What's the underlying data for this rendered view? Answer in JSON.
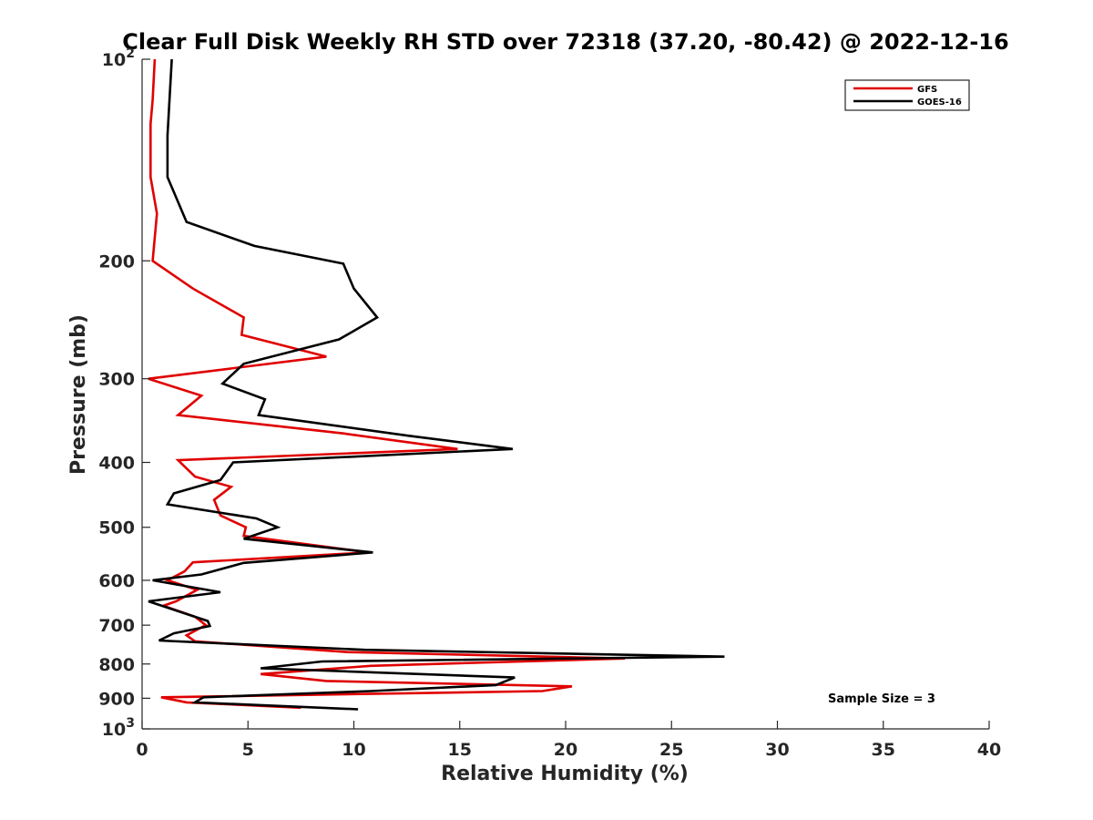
{
  "chart_data": {
    "type": "line",
    "title": "Clear Full Disk Weekly RH STD over 72318 (37.20, -80.42) @ 2022-12-16",
    "xlabel": "Relative Humidity (%)",
    "ylabel": "Pressure (mb)",
    "xlim": [
      0,
      40
    ],
    "ylim": [
      100,
      1000
    ],
    "y_scale": "log",
    "y_reversed": true,
    "x_ticks": [
      "0",
      "5",
      "10",
      "15",
      "20",
      "25",
      "30",
      "35",
      "40"
    ],
    "y_ticks": [
      {
        "value": 100,
        "label": "10",
        "sup": "2"
      },
      {
        "value": 200,
        "label": "200",
        "sup": ""
      },
      {
        "value": 300,
        "label": "300",
        "sup": ""
      },
      {
        "value": 400,
        "label": "400",
        "sup": ""
      },
      {
        "value": 500,
        "label": "500",
        "sup": ""
      },
      {
        "value": 600,
        "label": "600",
        "sup": ""
      },
      {
        "value": 700,
        "label": "700",
        "sup": ""
      },
      {
        "value": 800,
        "label": "800",
        "sup": ""
      },
      {
        "value": 900,
        "label": "900",
        "sup": ""
      },
      {
        "value": 1000,
        "label": "10",
        "sup": "3"
      }
    ],
    "legend_position": "top-right",
    "grid": false,
    "annotation": "Sample Size = 3",
    "series": [
      {
        "name": "GFS",
        "color": "#e00000",
        "points": [
          [
            0.6,
            100
          ],
          [
            0.5,
            115
          ],
          [
            0.4,
            125
          ],
          [
            0.4,
            150
          ],
          [
            0.7,
            170
          ],
          [
            0.5,
            200
          ],
          [
            2.4,
            220
          ],
          [
            4.8,
            243
          ],
          [
            4.7,
            258
          ],
          [
            8.7,
            278
          ],
          [
            0.3,
            300
          ],
          [
            2.8,
            318
          ],
          [
            1.7,
            340
          ],
          [
            9.5,
            362
          ],
          [
            14.9,
            382
          ],
          [
            1.7,
            397
          ],
          [
            2.5,
            420
          ],
          [
            4.2,
            435
          ],
          [
            3.4,
            455
          ],
          [
            3.7,
            480
          ],
          [
            4.9,
            500
          ],
          [
            4.8,
            515
          ],
          [
            10.7,
            545
          ],
          [
            2.4,
            564
          ],
          [
            2.0,
            582
          ],
          [
            1.2,
            600
          ],
          [
            2.6,
            620
          ],
          [
            1.6,
            645
          ],
          [
            1.0,
            655
          ],
          [
            2.5,
            680
          ],
          [
            3.0,
            700
          ],
          [
            2.1,
            725
          ],
          [
            2.5,
            740
          ],
          [
            9.7,
            768
          ],
          [
            22.8,
            785
          ],
          [
            10.8,
            805
          ],
          [
            5.6,
            828
          ],
          [
            8.7,
            848
          ],
          [
            20.3,
            864
          ],
          [
            18.9,
            878
          ],
          [
            0.9,
            897
          ],
          [
            2.1,
            913
          ],
          [
            7.5,
            930
          ]
        ]
      },
      {
        "name": "GOES-16",
        "color": "#000000",
        "points": [
          [
            1.4,
            100
          ],
          [
            1.2,
            130
          ],
          [
            1.2,
            150
          ],
          [
            2.1,
            175
          ],
          [
            5.3,
            190
          ],
          [
            9.5,
            202
          ],
          [
            10.0,
            220
          ],
          [
            11.1,
            243
          ],
          [
            9.3,
            262
          ],
          [
            4.8,
            285
          ],
          [
            3.8,
            305
          ],
          [
            5.8,
            322
          ],
          [
            5.5,
            340
          ],
          [
            12.6,
            365
          ],
          [
            17.5,
            382
          ],
          [
            4.3,
            400
          ],
          [
            3.7,
            425
          ],
          [
            1.5,
            445
          ],
          [
            1.2,
            462
          ],
          [
            5.4,
            485
          ],
          [
            6.4,
            500
          ],
          [
            4.8,
            520
          ],
          [
            10.9,
            545
          ],
          [
            4.8,
            565
          ],
          [
            2.8,
            588
          ],
          [
            0.5,
            600
          ],
          [
            3.7,
            625
          ],
          [
            0.3,
            645
          ],
          [
            2.0,
            672
          ],
          [
            3.1,
            690
          ],
          [
            3.2,
            702
          ],
          [
            1.5,
            720
          ],
          [
            0.8,
            738
          ],
          [
            10.5,
            762
          ],
          [
            27.5,
            780
          ],
          [
            8.5,
            793
          ],
          [
            5.6,
            812
          ],
          [
            17.6,
            838
          ],
          [
            16.7,
            860
          ],
          [
            10.8,
            878
          ],
          [
            2.9,
            897
          ],
          [
            2.5,
            913
          ],
          [
            10.2,
            935
          ]
        ]
      }
    ]
  }
}
